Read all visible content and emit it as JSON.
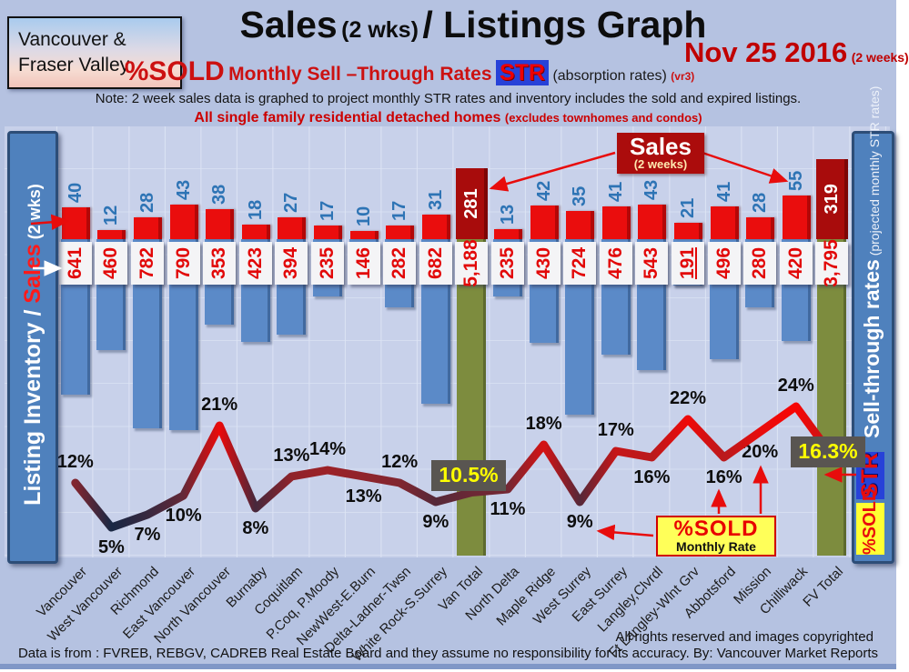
{
  "header": {
    "region_line1": "Vancouver &",
    "region_line2": "Fraser Valley",
    "title_main": "Sales",
    "title_paren": "(2 wks)",
    "title_rest": "/ Listings Graph",
    "date": "Nov 25 2016",
    "date_note": "(2 weeks)",
    "pct_sold": "%SOLD",
    "subtitle": "Monthly Sell –Through Rates",
    "str_badge": "STR",
    "absorption": "(absorption rates)",
    "version": "(vr3)",
    "note": "Note: 2 week sales data is graphed to project monthly STR rates and inventory includes the sold and expired listings.",
    "homes": "All single family residential detached homes",
    "homes_paren": "(excludes townhomes and condos)"
  },
  "left_axis": {
    "part1": "Listing Inventory / ",
    "part2": "Sales",
    "part3": " (2  wks)"
  },
  "right_axis": {
    "title": "Sell-through rates",
    "subtitle": "  (projected monthly STR rates)",
    "str_badge": "STR",
    "sold_badge": "%SOLD"
  },
  "callouts": {
    "sales": "Sales",
    "sales_sub": "(2 weeks)",
    "sold": "%SOLD",
    "sold_sub": "Monthly Rate",
    "van_total_rate": "10.5%",
    "fv_total_rate": "16.3%"
  },
  "footer": {
    "rights": "All rights reserved and  images copyrighted",
    "source": "Data is from : FVREB, REBGV, CADREB Real Estate Board and they assume no responsibility for its accuracy. By: Vancouver Market Reports"
  },
  "colors": {
    "sales_bar": "#ea0d0d",
    "total_bar": "#a80c0c",
    "inventory_bar": "#5b8ac8",
    "total_inventory_bar": "#7d8c3e",
    "sales_number": "#2e74b5",
    "inventory_number": "#e20808",
    "rate_box_bg": "#595551",
    "rate_box_text": "#ffff00",
    "line_low": "#192844",
    "line_high": "#f80505"
  },
  "chart_data": {
    "type": "bar+line",
    "title": "Sales (2 wks) / Listings Graph — Nov 25 2016",
    "categories": [
      "Vancouver",
      "West Vancouver",
      "Richmond",
      "East Vancouver",
      "North Vancouver",
      "Burnaby",
      "Coquitlam",
      "P.Coq, P.Moody",
      "NewWest-E.Burn",
      "Delta-Ladner-Twsn",
      "White Rock-S.Surrey",
      "Van Total",
      "North Delta",
      "Maple Ridge",
      "West Surrey",
      "East Surrey",
      "Langley,Clvrdl",
      "Ft Langley-Wlnt Grv",
      "Abbotsford",
      "Mission",
      "Chilliwack",
      "FV Total"
    ],
    "series": [
      {
        "name": "Sales (2 weeks)",
        "type": "bar",
        "values": [
          40,
          12,
          28,
          43,
          38,
          18,
          27,
          17,
          10,
          17,
          31,
          281,
          13,
          42,
          35,
          41,
          43,
          21,
          41,
          28,
          55,
          319
        ]
      },
      {
        "name": "Listing Inventory (includes sold and expired)",
        "type": "bar-down",
        "values": [
          641,
          460,
          782,
          790,
          353,
          423,
          394,
          235,
          146,
          282,
          682,
          5188,
          235,
          430,
          724,
          476,
          543,
          191,
          496,
          280,
          420,
          3795
        ]
      },
      {
        "name": "%SOLD projected monthly sell-through rate",
        "type": "line",
        "values": [
          12,
          5,
          7,
          10,
          21,
          8,
          13,
          14,
          13,
          12,
          9,
          10.5,
          11,
          18,
          9,
          17,
          16,
          22,
          16,
          20,
          24,
          16.3
        ]
      }
    ],
    "inventory_labels": [
      "641",
      "460",
      "782",
      "790",
      "353",
      "423",
      "394",
      "235",
      "146",
      "282",
      "682",
      "5,188",
      "235",
      "430",
      "724",
      "476",
      "543",
      "191",
      "496",
      "280",
      "420",
      "3,795"
    ],
    "pct_labels": [
      "12%",
      "5%",
      "7%",
      "10%",
      "21%",
      "8%",
      "13%",
      "14%",
      "13%",
      "12%",
      "9%",
      "10.5%",
      "11%",
      "18%",
      "9%",
      "17%",
      "16%",
      "22%",
      "16%",
      "20%",
      "24%",
      "16.3%"
    ],
    "pct_label_side": [
      "above",
      "below",
      "below",
      "below",
      "above",
      "below",
      "above",
      "above",
      "below",
      "above",
      "below",
      "box",
      "below",
      "above",
      "below",
      "above",
      "below",
      "above",
      "below",
      "below",
      "above",
      "box"
    ],
    "total_column_indices": [
      11,
      21
    ],
    "underlined_inventory_index": 17,
    "legend_position": "axis-sidebars",
    "grid": true
  }
}
